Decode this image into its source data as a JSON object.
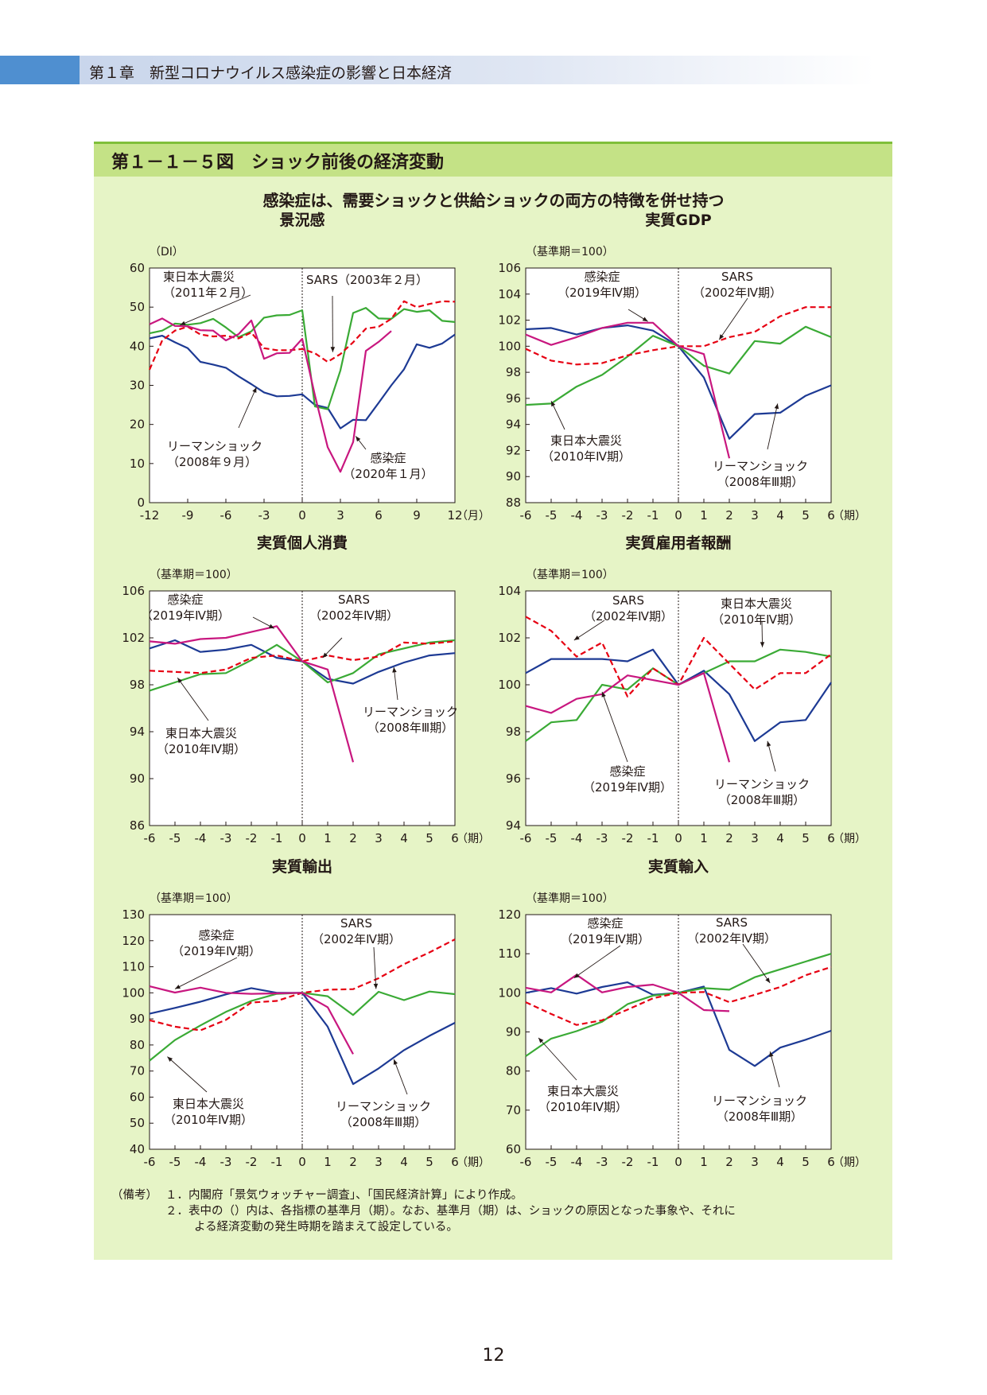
{
  "header": {
    "chapter": "第１章　新型コロナウイルス感染症の影響と日本経済"
  },
  "figure": {
    "title": "第１－１－５図　ショック前後の経済変動",
    "subtitle": "感染症は、需要ショックと供給ショックの両方の特徴を併せ持つ"
  },
  "colors": {
    "covid": "#c8177f",
    "sars": "#e60012",
    "quake": "#3aaa35",
    "lehman": "#1d3a94"
  },
  "chart_data": [
    {
      "id": "sentiment",
      "type": "line",
      "title": "景況感",
      "unit": "（DI）",
      "x_suffix": "（月）",
      "ylim": [
        0,
        60
      ],
      "yticks": [
        0,
        10,
        20,
        30,
        40,
        50,
        60
      ],
      "xlim": [
        -12,
        12
      ],
      "xticks": [
        -12,
        -9,
        -6,
        -3,
        0,
        3,
        6,
        9,
        12
      ],
      "series": [
        {
          "key": "lehman",
          "x": [
            -12,
            -11,
            -10,
            -9,
            -8,
            -7,
            -6,
            -5,
            -4,
            -3,
            -2,
            -1,
            0,
            1,
            2,
            3,
            4,
            5,
            6,
            7,
            8,
            9,
            10,
            11,
            12
          ],
          "values": [
            42,
            42.7,
            41,
            39.5,
            36,
            35.3,
            34.5,
            32.3,
            30.3,
            28.2,
            27.2,
            27.3,
            27.7,
            25,
            24.2,
            19,
            21.2,
            21.1,
            25.5,
            30,
            34.1,
            40.5,
            39.6,
            40.7,
            43
          ]
        },
        {
          "key": "quake",
          "x": [
            -12,
            -11,
            -10,
            -9,
            -8,
            -7,
            -6,
            -5,
            -4,
            -3,
            -2,
            -1,
            0,
            1,
            2,
            3,
            4,
            5,
            6,
            7,
            8,
            9,
            10,
            11,
            12
          ],
          "values": [
            43.3,
            44,
            45.8,
            45.5,
            45.9,
            47,
            44.8,
            42.3,
            43.8,
            47.3,
            47.9,
            48,
            49.2,
            24.6,
            23.9,
            33.8,
            48.5,
            49.8,
            47.1,
            47,
            49.5,
            48.8,
            49.2,
            46.5,
            46.2
          ]
        },
        {
          "key": "sars",
          "dashed": true,
          "x": [
            -12,
            -11,
            -10,
            -9,
            -8,
            -7,
            -6,
            -5,
            -4,
            -3,
            -2,
            -1,
            0,
            1,
            2,
            3,
            4,
            5,
            6,
            7,
            8,
            9,
            10,
            11,
            12
          ],
          "values": [
            34,
            41.5,
            44,
            45,
            43,
            42.5,
            42.7,
            42,
            43.5,
            39.5,
            39,
            39,
            39.3,
            38.2,
            36,
            38,
            41,
            44.5,
            45,
            47,
            51.5,
            50,
            50.8,
            51.5,
            51.4
          ]
        },
        {
          "key": "covid",
          "x": [
            -12,
            -11,
            -10,
            -9,
            -8,
            -7,
            -6,
            -5,
            -4,
            -3,
            -2,
            -1,
            0,
            1,
            2,
            3,
            4,
            5,
            6,
            7
          ],
          "values": [
            45.6,
            47.1,
            45.2,
            45.1,
            44.1,
            44,
            41.5,
            43.1,
            46.6,
            36.8,
            38.2,
            38.3,
            41.9,
            27.4,
            14.2,
            7.9,
            15.5,
            38.8,
            41.1,
            43.9
          ]
        }
      ],
      "labels": {
        "lehman": [
          "リーマンショック",
          "（2008年９月）"
        ],
        "quake": [
          "東日本大震災",
          "（2011年２月）"
        ],
        "sars": [
          "SARS（2003年２月）"
        ],
        "covid": [
          "感染症",
          "（2020年１月）"
        ]
      }
    },
    {
      "id": "gdp",
      "type": "line",
      "title": "実質GDP",
      "unit": "（基準期＝100）",
      "x_suffix": "（期）",
      "ylim": [
        88,
        106
      ],
      "yticks": [
        88,
        90,
        92,
        94,
        96,
        98,
        100,
        102,
        104,
        106
      ],
      "xlim": [
        -6,
        6
      ],
      "xticks": [
        -6,
        -5,
        -4,
        -3,
        -2,
        -1,
        0,
        1,
        2,
        3,
        4,
        5,
        6
      ],
      "series": [
        {
          "key": "lehman",
          "x": [
            -6,
            -5,
            -4,
            -3,
            -2,
            -1,
            0,
            1,
            2,
            3,
            4,
            5,
            6
          ],
          "values": [
            101.3,
            101.4,
            100.9,
            101.4,
            101.6,
            101.2,
            100,
            97.6,
            92.9,
            94.8,
            94.9,
            96.2,
            97
          ]
        },
        {
          "key": "quake",
          "x": [
            -6,
            -5,
            -4,
            -3,
            -2,
            -1,
            0,
            1,
            2,
            3,
            4,
            5,
            6
          ],
          "values": [
            95.5,
            95.6,
            96.9,
            97.8,
            99.2,
            100.8,
            100,
            98.5,
            97.9,
            100.4,
            100.2,
            101.5,
            100.7
          ]
        },
        {
          "key": "sars",
          "dashed": true,
          "x": [
            -6,
            -5,
            -4,
            -3,
            -2,
            -1,
            0,
            1,
            2,
            3,
            4,
            5,
            6
          ],
          "values": [
            99.8,
            98.9,
            98.6,
            98.7,
            99.3,
            99.7,
            100,
            100,
            100.7,
            101.1,
            102.3,
            103,
            103
          ]
        },
        {
          "key": "covid",
          "x": [
            -6,
            -5,
            -4,
            -3,
            -2,
            -1,
            0,
            1,
            2
          ],
          "values": [
            100.9,
            100.1,
            100.7,
            101.4,
            101.8,
            101.8,
            100,
            99.4,
            91.4
          ]
        }
      ],
      "labels": {
        "lehman": [
          "リーマンショック",
          "（2008年Ⅲ期）"
        ],
        "quake": [
          "東日本大震災",
          "（2010年Ⅳ期）"
        ],
        "sars": [
          "SARS",
          "（2002年Ⅳ期）"
        ],
        "covid": [
          "感染症",
          "（2019年Ⅳ期）"
        ]
      }
    },
    {
      "id": "consumption",
      "type": "line",
      "title": "実質個人消費",
      "unit": "（基準期＝100）",
      "x_suffix": "（期）",
      "ylim": [
        86,
        106
      ],
      "yticks": [
        86,
        90,
        94,
        98,
        102,
        106
      ],
      "xlim": [
        -6,
        6
      ],
      "xticks": [
        -6,
        -5,
        -4,
        -3,
        -2,
        -1,
        0,
        1,
        2,
        3,
        4,
        5,
        6
      ],
      "series": [
        {
          "key": "lehman",
          "x": [
            -6,
            -5,
            -4,
            -3,
            -2,
            -1,
            0,
            1,
            2,
            3,
            4,
            5,
            6
          ],
          "values": [
            101.1,
            101.8,
            100.8,
            101,
            101.4,
            100.3,
            100,
            98.5,
            98.1,
            99.1,
            99.9,
            100.5,
            100.7
          ]
        },
        {
          "key": "quake",
          "x": [
            -6,
            -5,
            -4,
            -3,
            -2,
            -1,
            0,
            1,
            2,
            3,
            4,
            5,
            6
          ],
          "values": [
            97.5,
            98.2,
            98.9,
            99,
            100.1,
            101.4,
            100,
            98.2,
            99,
            100.6,
            101.1,
            101.6,
            101.8
          ]
        },
        {
          "key": "sars",
          "dashed": true,
          "x": [
            -6,
            -5,
            -4,
            -3,
            -2,
            -1,
            0,
            1,
            2,
            3,
            4,
            5,
            6
          ],
          "values": [
            99.2,
            99.1,
            99,
            99.3,
            100.3,
            100.5,
            100,
            100.5,
            100.1,
            100.4,
            101.6,
            101.5,
            101.7
          ]
        },
        {
          "key": "covid",
          "x": [
            -6,
            -5,
            -4,
            -3,
            -2,
            -1,
            0,
            1,
            2
          ],
          "values": [
            101.7,
            101.5,
            101.9,
            102,
            102.5,
            103,
            100,
            99.3,
            91.4
          ]
        }
      ],
      "labels": {
        "lehman": [
          "リーマンショック",
          "（2008年Ⅲ期）"
        ],
        "quake": [
          "東日本大震災",
          "（2010年Ⅳ期）"
        ],
        "sars": [
          "SARS",
          "（2002年Ⅳ期）"
        ],
        "covid": [
          "感染症",
          "（2019年Ⅳ期）"
        ]
      }
    },
    {
      "id": "compensation",
      "type": "line",
      "title": "実質雇用者報酬",
      "unit": "（基準期＝100）",
      "x_suffix": "（期）",
      "ylim": [
        94,
        104
      ],
      "yticks": [
        94,
        96,
        98,
        100,
        102,
        104
      ],
      "xlim": [
        -6,
        6
      ],
      "xticks": [
        -6,
        -5,
        -4,
        -3,
        -2,
        -1,
        0,
        1,
        2,
        3,
        4,
        5,
        6
      ],
      "series": [
        {
          "key": "lehman",
          "x": [
            -6,
            -5,
            -4,
            -3,
            -2,
            -1,
            0,
            1,
            2,
            3,
            4,
            5,
            6
          ],
          "values": [
            100.5,
            101.1,
            101.1,
            101.1,
            101,
            101.5,
            100,
            100.6,
            99.6,
            97.6,
            98.4,
            98.5,
            100.1
          ]
        },
        {
          "key": "quake",
          "x": [
            -6,
            -5,
            -4,
            -3,
            -2,
            -1,
            0,
            1,
            2,
            3,
            4,
            5,
            6
          ],
          "values": [
            97.6,
            98.4,
            98.5,
            100,
            99.8,
            100.7,
            100,
            100.5,
            101,
            101,
            101.5,
            101.4,
            101.2
          ]
        },
        {
          "key": "sars",
          "dashed": true,
          "x": [
            -6,
            -5,
            -4,
            -3,
            -2,
            -1,
            0,
            1,
            2,
            3,
            4,
            5,
            6
          ],
          "values": [
            102.9,
            102.3,
            101.2,
            101.8,
            99.5,
            100.7,
            100,
            102,
            100.9,
            99.8,
            100.5,
            100.5,
            101.3
          ]
        },
        {
          "key": "covid",
          "x": [
            -6,
            -5,
            -4,
            -3,
            -2,
            -1,
            0,
            1,
            2
          ],
          "values": [
            99.1,
            98.8,
            99.4,
            99.6,
            100.4,
            100.2,
            100,
            100.5,
            96.7
          ]
        }
      ],
      "labels": {
        "lehman": [
          "リーマンショック",
          "（2008年Ⅲ期）"
        ],
        "quake": [
          "東日本大震災",
          "（2010年Ⅳ期）"
        ],
        "sars": [
          "SARS",
          "（2002年Ⅳ期）"
        ],
        "covid": [
          "感染症",
          "（2019年Ⅳ期）"
        ]
      }
    },
    {
      "id": "exports",
      "type": "line",
      "title": "実質輸出",
      "unit": "（基準期＝100）",
      "x_suffix": "（期）",
      "ylim": [
        40,
        130
      ],
      "yticks": [
        40,
        50,
        60,
        70,
        80,
        90,
        100,
        110,
        120,
        130
      ],
      "xlim": [
        -6,
        6
      ],
      "xticks": [
        -6,
        -5,
        -4,
        -3,
        -2,
        -1,
        0,
        1,
        2,
        3,
        4,
        5,
        6
      ],
      "series": [
        {
          "key": "lehman",
          "x": [
            -6,
            -5,
            -4,
            -3,
            -2,
            -1,
            0,
            1,
            2,
            3,
            4,
            5,
            6
          ],
          "values": [
            92,
            94.2,
            96.6,
            99.4,
            101.8,
            100,
            100,
            87,
            65,
            71,
            78,
            83.5,
            88.5
          ]
        },
        {
          "key": "quake",
          "x": [
            -6,
            -5,
            -4,
            -3,
            -2,
            -1,
            0,
            1,
            2,
            3,
            4,
            5,
            6
          ],
          "values": [
            74,
            81.9,
            87.5,
            92.7,
            96.9,
            99.6,
            100,
            98.7,
            91.5,
            100.4,
            97.2,
            100.5,
            99.5
          ]
        },
        {
          "key": "sars",
          "dashed": true,
          "x": [
            -6,
            -5,
            -4,
            -3,
            -2,
            -1,
            0,
            1,
            2,
            3,
            4,
            5,
            6
          ],
          "values": [
            89.5,
            87,
            85.6,
            89.6,
            96.3,
            96.9,
            100,
            101.2,
            101.4,
            105.6,
            111,
            115.5,
            120.5
          ]
        },
        {
          "key": "covid",
          "x": [
            -6,
            -5,
            -4,
            -3,
            -2,
            -1,
            0,
            1,
            2
          ],
          "values": [
            102.5,
            100.1,
            102,
            100,
            99.6,
            99.8,
            100,
            94.5,
            76.5
          ]
        }
      ],
      "labels": {
        "lehman": [
          "リーマンショック",
          "（2008年Ⅲ期）"
        ],
        "quake": [
          "東日本大震災",
          "（2010年Ⅳ期）"
        ],
        "sars": [
          "SARS",
          "（2002年Ⅳ期）"
        ],
        "covid": [
          "感染症",
          "（2019年Ⅳ期）"
        ]
      }
    },
    {
      "id": "imports",
      "type": "line",
      "title": "実質輸入",
      "unit": "（基準期＝100）",
      "x_suffix": "（期）",
      "ylim": [
        60,
        120
      ],
      "yticks": [
        60,
        70,
        80,
        90,
        100,
        110,
        120
      ],
      "xlim": [
        -6,
        6
      ],
      "xticks": [
        -6,
        -5,
        -4,
        -3,
        -2,
        -1,
        0,
        1,
        2,
        3,
        4,
        5,
        6
      ],
      "series": [
        {
          "key": "lehman",
          "x": [
            -6,
            -5,
            -4,
            -3,
            -2,
            -1,
            0,
            1,
            2,
            3,
            4,
            5,
            6
          ],
          "values": [
            100,
            101.2,
            99.8,
            101.5,
            102.7,
            99.5,
            100,
            101.6,
            85.4,
            81.3,
            86,
            88,
            90.3
          ]
        },
        {
          "key": "quake",
          "x": [
            -6,
            -5,
            -4,
            -3,
            -2,
            -1,
            0,
            1,
            2,
            3,
            4,
            5,
            6
          ],
          "values": [
            83.8,
            88.3,
            90.2,
            92.6,
            97.1,
            99.3,
            100,
            101.2,
            100.8,
            104,
            106,
            108,
            110
          ]
        },
        {
          "key": "sars",
          "dashed": true,
          "x": [
            -6,
            -5,
            -4,
            -3,
            -2,
            -1,
            0,
            1,
            2,
            3,
            4,
            5,
            6
          ],
          "values": [
            97.6,
            94.6,
            91.8,
            93,
            95.7,
            98.6,
            100,
            100.2,
            97.6,
            99.5,
            101.5,
            104.5,
            106.6
          ]
        },
        {
          "key": "covid",
          "x": [
            -6,
            -5,
            -4,
            -3,
            -2,
            -1,
            0,
            1,
            2
          ],
          "values": [
            101.3,
            100.1,
            104.6,
            100.1,
            101.5,
            102.1,
            100,
            95.6,
            95.3
          ]
        }
      ],
      "labels": {
        "lehman": [
          "リーマンショック",
          "（2008年Ⅲ期）"
        ],
        "quake": [
          "東日本大震災",
          "（2010年Ⅳ期）"
        ],
        "sars": [
          "SARS",
          "（2002年Ⅳ期）"
        ],
        "covid": [
          "感染症",
          "（2019年Ⅳ期）"
        ]
      }
    }
  ],
  "notes": {
    "label": "（備考）",
    "lines": [
      "１．内閣府「景気ウォッチャー調査」、「国民経済計算」により作成。",
      "２．表中の（）内は、各指標の基準月（期）。なお、基準月（期）は、ショックの原因となった事象や、それに",
      "よる経済変動の発生時期を踏まえて設定している。"
    ]
  },
  "page_number": "12"
}
